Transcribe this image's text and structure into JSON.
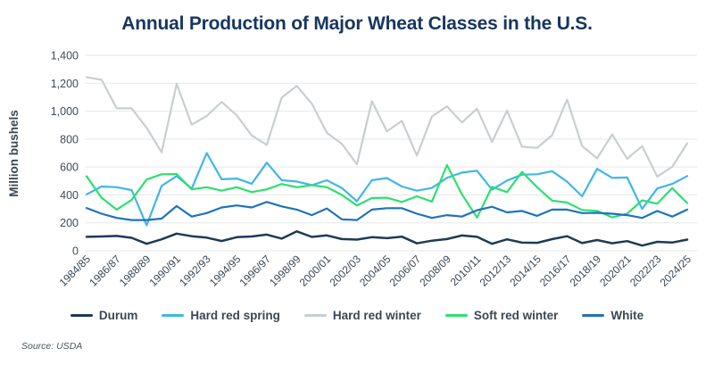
{
  "title": "Annual Production of Major Wheat Classes in the U.S.",
  "source": "Source: USDA",
  "chart_data": {
    "type": "line",
    "title": "Annual Production of Major Wheat Classes in the U.S.",
    "xlabel": "",
    "ylabel": "Million bushels",
    "ylim": [
      0,
      1400
    ],
    "ytick_step": 200,
    "grid": "horizontal",
    "legend_position": "bottom",
    "xtick_every": 2,
    "categories": [
      "1984/85",
      "1985/86",
      "1986/87",
      "1987/88",
      "1988/89",
      "1989/90",
      "1990/91",
      "1991/92",
      "1992/93",
      "1993/94",
      "1994/95",
      "1995/96",
      "1996/97",
      "1997/98",
      "1998/99",
      "1999/00",
      "2000/01",
      "2001/02",
      "2002/03",
      "2003/04",
      "2004/05",
      "2005/06",
      "2006/07",
      "2007/08",
      "2008/09",
      "2009/10",
      "2010/11",
      "2011/12",
      "2012/13",
      "2013/14",
      "2014/15",
      "2015/16",
      "2016/17",
      "2017/18",
      "2018/19",
      "2019/20",
      "2020/21",
      "2021/22",
      "2022/23",
      "2023/24",
      "2024/25"
    ],
    "series": [
      {
        "name": "Durum",
        "color": "#1d3b55",
        "values": [
          100,
          102,
          106,
          93,
          50,
          82,
          123,
          104,
          94,
          70,
          97,
          102,
          116,
          87,
          139,
          99,
          110,
          84,
          80,
          97,
          90,
          101,
          53,
          72,
          84,
          109,
          100,
          50,
          82,
          58,
          57,
          83,
          104,
          55,
          77,
          54,
          69,
          37,
          64,
          59,
          80
        ]
      },
      {
        "name": "Hard red spring",
        "color": "#41b6e6",
        "values": [
          404,
          460,
          455,
          435,
          182,
          465,
          535,
          445,
          700,
          512,
          517,
          480,
          631,
          505,
          496,
          470,
          505,
          450,
          355,
          505,
          521,
          460,
          430,
          450,
          522,
          560,
          573,
          438,
          503,
          545,
          548,
          570,
          495,
          390,
          587,
          522,
          525,
          300,
          446,
          479,
          535
        ]
      },
      {
        "name": "Hard red winter",
        "color": "#c9ced1",
        "values": [
          1243,
          1225,
          1020,
          1020,
          880,
          705,
          1196,
          903,
          965,
          1066,
          970,
          825,
          759,
          1098,
          1181,
          1053,
          846,
          766,
          620,
          1071,
          856,
          930,
          682,
          962,
          1035,
          919,
          1018,
          780,
          1004,
          745,
          737,
          827,
          1082,
          750,
          662,
          833,
          659,
          749,
          531,
          601,
          770
        ]
      },
      {
        "name": "Soft red winter",
        "color": "#2ce06e",
        "values": [
          534,
          380,
          295,
          365,
          510,
          548,
          550,
          440,
          455,
          430,
          455,
          420,
          440,
          478,
          455,
          470,
          455,
          400,
          324,
          378,
          380,
          350,
          390,
          352,
          614,
          404,
          238,
          458,
          420,
          565,
          455,
          359,
          345,
          292,
          286,
          239,
          266,
          361,
          337,
          449,
          342
        ]
      },
      {
        "name": "White",
        "color": "#1e73bc",
        "values": [
          306,
          265,
          235,
          220,
          220,
          230,
          320,
          245,
          270,
          310,
          325,
          310,
          350,
          318,
          295,
          255,
          303,
          225,
          220,
          295,
          305,
          305,
          265,
          235,
          255,
          245,
          290,
          315,
          275,
          285,
          250,
          295,
          295,
          270,
          272,
          265,
          255,
          235,
          285,
          245,
          295
        ]
      }
    ]
  }
}
